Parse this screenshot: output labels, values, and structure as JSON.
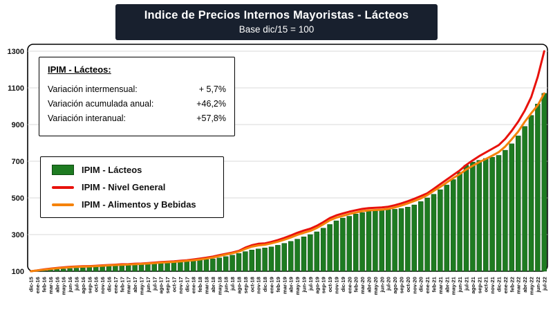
{
  "annotation": {
    "title": "IPIM - Lácteos:",
    "rows": [
      {
        "label": "Variación intermensual:",
        "value": "+ 5,7%"
      },
      {
        "label": "Variación acumulada anual:",
        "value": "+46,2%"
      },
      {
        "label": "Variación interanual:",
        "value": "+57,8%"
      }
    ]
  },
  "colors": {
    "banner_bg": "#18202e",
    "banner_text": "#ffffff",
    "grid": "#d9d9d9",
    "axis": "#000000",
    "text": "#111111",
    "bar_green": "#1e7b21",
    "bar_green_border": "#0d4a10",
    "line_red": "#e8120c",
    "line_orange": "#f5820a"
  },
  "chart_data": {
    "type": "combo",
    "title": "Indice de Precios Internos Mayoristas - Lácteos",
    "subtitle": "Base dic/15 = 100",
    "ylim": [
      100,
      1300
    ],
    "yticks": [
      100,
      300,
      500,
      700,
      900,
      1100,
      1300
    ],
    "grid": true,
    "legend_position": "inside-left",
    "categories": [
      "dic-15",
      "ene-16",
      "feb-16",
      "mar-16",
      "abr-16",
      "may-16",
      "jun-16",
      "jul-16",
      "ago-16",
      "sep-16",
      "oct-16",
      "nov-16",
      "dic-16",
      "ene-17",
      "feb-17",
      "mar-17",
      "abr-17",
      "may-17",
      "jun-17",
      "jul-17",
      "ago-17",
      "sep-17",
      "oct-17",
      "nov-17",
      "dic-17",
      "ene-18",
      "feb-18",
      "mar-18",
      "abr-18",
      "may-18",
      "jun-18",
      "jul-18",
      "ago-18",
      "sep-18",
      "oct-18",
      "nov-18",
      "dic-18",
      "ene-19",
      "feb-19",
      "mar-19",
      "abr-19",
      "may-19",
      "jun-19",
      "jul-19",
      "ago-19",
      "sep-19",
      "oct-19",
      "nov-19",
      "dic-19",
      "ene-20",
      "feb-20",
      "mar-20",
      "abr-20",
      "may-20",
      "jun-20",
      "jul-20",
      "ago-20",
      "sep-20",
      "oct-20",
      "nov-20",
      "dic-20",
      "ene-21",
      "feb-21",
      "mar-21",
      "abr-21",
      "may-21",
      "jun-21",
      "jul-21",
      "ago-21",
      "sep-21",
      "oct-21",
      "nov-21",
      "dic-21",
      "ene-22",
      "feb-22",
      "mar-22",
      "abr-22",
      "may-22",
      "jun-22",
      "jul-22"
    ],
    "series": [
      {
        "name": "IPIM - Lácteos",
        "type": "bar",
        "color": "#1e7b21",
        "border_color": "#0d4a10",
        "values": [
          100,
          102,
          104,
          107,
          110,
          112,
          115,
          117,
          119,
          121,
          123,
          125,
          127,
          129,
          131,
          133,
          135,
          137,
          139,
          141,
          143,
          146,
          149,
          152,
          155,
          158,
          161,
          164,
          168,
          173,
          180,
          188,
          197,
          207,
          216,
          222,
          227,
          233,
          242,
          252,
          263,
          275,
          288,
          300,
          315,
          335,
          355,
          375,
          390,
          400,
          412,
          420,
          428,
          432,
          434,
          436,
          438,
          442,
          450,
          462,
          480,
          500,
          520,
          545,
          570,
          600,
          640,
          678,
          695,
          705,
          715,
          722,
          732,
          760,
          795,
          838,
          890,
          950,
          1012,
          1070
        ]
      },
      {
        "name": "IPIM - Nivel General",
        "type": "line",
        "color": "#e8120c",
        "values": [
          100,
          105,
          110,
          114,
          118,
          121,
          124,
          126,
          127,
          128,
          130,
          132,
          134,
          136,
          138,
          139,
          141,
          142,
          144,
          147,
          150,
          152,
          154,
          157,
          160,
          164,
          169,
          174,
          180,
          188,
          195,
          202,
          211,
          229,
          242,
          250,
          252,
          260,
          270,
          282,
          295,
          310,
          322,
          332,
          348,
          368,
          390,
          405,
          415,
          425,
          433,
          440,
          444,
          446,
          448,
          452,
          460,
          470,
          482,
          495,
          510,
          525,
          550,
          575,
          600,
          625,
          650,
          680,
          705,
          728,
          748,
          768,
          788,
          822,
          866,
          916,
          976,
          1050,
          1160,
          1300
        ]
      },
      {
        "name": "IPIM - Alimentos y Bebidas",
        "type": "line",
        "color": "#f5820a",
        "values": [
          100,
          104,
          108,
          112,
          116,
          119,
          122,
          124,
          125,
          126,
          128,
          130,
          132,
          134,
          135,
          137,
          138,
          140,
          142,
          144,
          147,
          149,
          151,
          154,
          157,
          160,
          164,
          169,
          175,
          183,
          191,
          198,
          207,
          222,
          234,
          241,
          244,
          252,
          261,
          272,
          284,
          298,
          310,
          320,
          336,
          356,
          378,
          392,
          402,
          412,
          420,
          428,
          432,
          434,
          436,
          440,
          448,
          458,
          470,
          483,
          497,
          515,
          538,
          560,
          584,
          608,
          630,
          655,
          675,
          695,
          712,
          730,
          750,
          780,
          820,
          862,
          915,
          962,
          1005,
          1070
        ]
      }
    ]
  }
}
